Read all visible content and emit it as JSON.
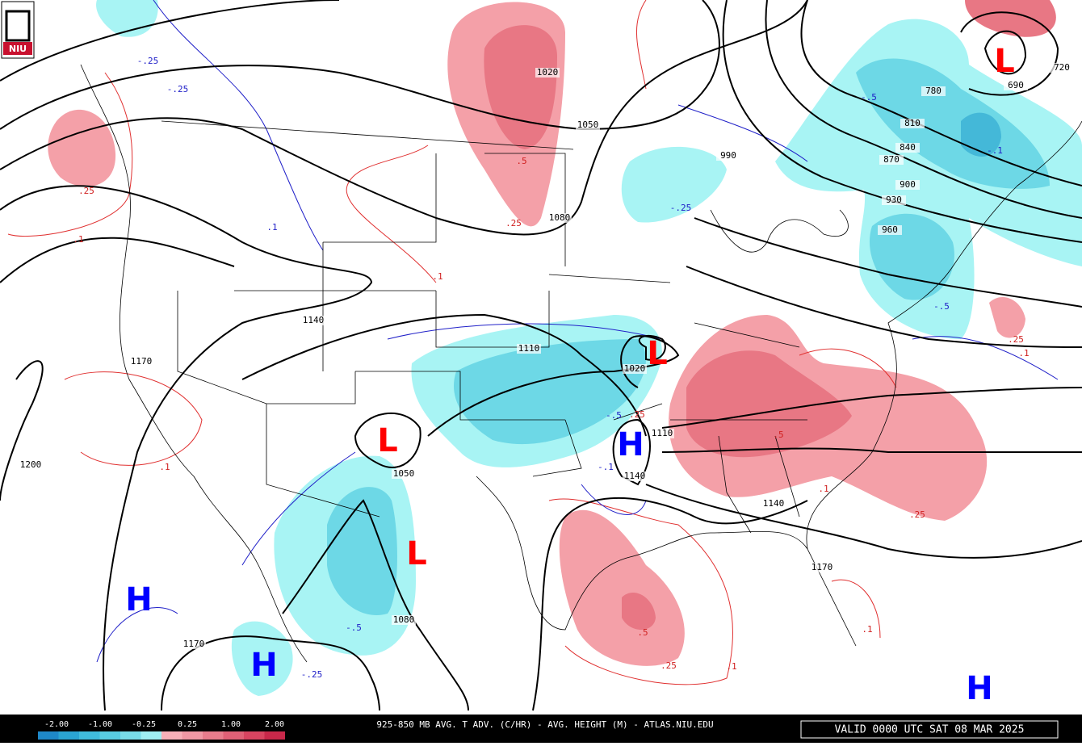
{
  "logo": "NIU",
  "heights": [
    "1020",
    "1050",
    "1080",
    "990",
    "1140",
    "1170",
    "1110",
    "1020",
    "1110",
    "1140",
    "1050",
    "1080",
    "1200",
    "1170",
    "1140",
    "1170",
    "780",
    "810",
    "840",
    "870",
    "900",
    "930",
    "960",
    "690",
    "720"
  ],
  "advection": [
    "-.25",
    "-.25",
    ".25",
    ".1",
    ".5",
    ".25",
    ".1",
    "-.25",
    "-.5",
    "-.1",
    "-.5",
    ".25",
    ".1",
    "-.5",
    ".25",
    "-.1",
    ".5",
    ".25",
    ".1",
    ".1",
    ".1",
    "-.5",
    "-.25",
    ".5",
    ".25",
    ".1",
    ".1"
  ],
  "centers": [
    "L",
    "L",
    "L",
    "L",
    "H",
    "H",
    "H",
    "H"
  ],
  "legend": {
    "labels": [
      "-2.00",
      "-1.00",
      "-0.25",
      "0.25",
      "1.00",
      "2.00"
    ]
  },
  "footer": "925-850 MB AVG. T ADV. (C/HR) - AVG. HEIGHT (M) - ATLAS.NIU.EDU",
  "valid": "VALID 0000 UTC SAT 08 MAR 2025"
}
